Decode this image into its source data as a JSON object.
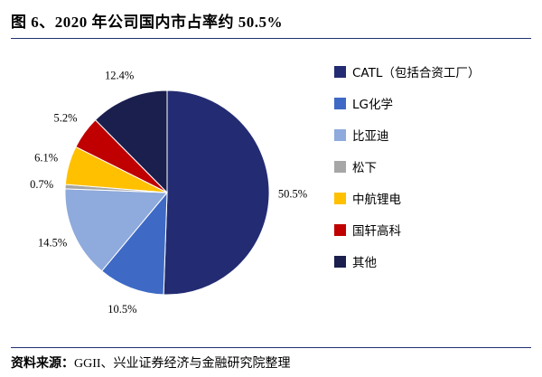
{
  "title": "图 6、2020 年公司国内市占率约 50.5%",
  "footer": {
    "label": "资料来源：",
    "text": "GGII、兴业证券经济与金融研究院整理"
  },
  "accent_color": "#1F3270",
  "chart_data": {
    "type": "pie",
    "title": "2020 年公司国内市占率约 50.5%",
    "labels": [
      "CATL（包括合资工厂）",
      "LG化学",
      "比亚迪",
      "松下",
      "中航锂电",
      "国轩高科",
      "其他"
    ],
    "values": [
      50.5,
      10.5,
      14.5,
      0.7,
      6.1,
      5.2,
      12.4
    ],
    "colors": [
      "#232C72",
      "#3E6AC6",
      "#8FAADC",
      "#A6A6A6",
      "#FFC000",
      "#C00000",
      "#1A1F4E"
    ],
    "value_suffix": "%",
    "start_angle_deg": 0,
    "direction": "clockwise",
    "legend_position": "right"
  }
}
